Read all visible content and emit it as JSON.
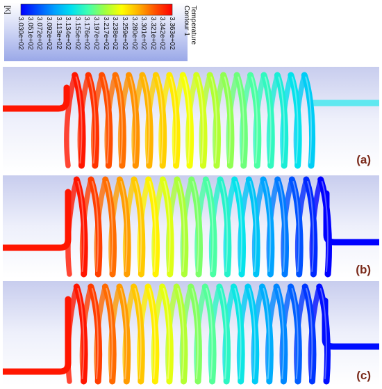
{
  "legend": {
    "title": "Temperature",
    "subtitle": "Contour 1",
    "unit": "[K]",
    "ticks": [
      "3.030e+02",
      "3.051e+02",
      "3.072e+02",
      "3.092e+02",
      "3.113e+02",
      "3.134e+02",
      "3.155e+02",
      "3.176e+02",
      "3.197e+02",
      "3.217e+02",
      "3.238e+02",
      "3.259e+02",
      "3.280e+02",
      "3.301e+02",
      "3.321e+02",
      "3.342e+02",
      "3.363e+02"
    ],
    "colormap": [
      "#0000ff",
      "#0050ff",
      "#00a0ff",
      "#00e0f0",
      "#40ffb0",
      "#a0ff40",
      "#ffff00",
      "#ffb000",
      "#ff5000",
      "#ff0000"
    ]
  },
  "panels": [
    {
      "label": "(a)",
      "cold_end": "right",
      "cold_outlet_color": "#60e8f0"
    },
    {
      "label": "(b)",
      "cold_end": "right",
      "cold_outlet_color": "#0000e0"
    },
    {
      "label": "(c)",
      "cold_end": "right",
      "cold_outlet_color": "#0010e8"
    }
  ]
}
